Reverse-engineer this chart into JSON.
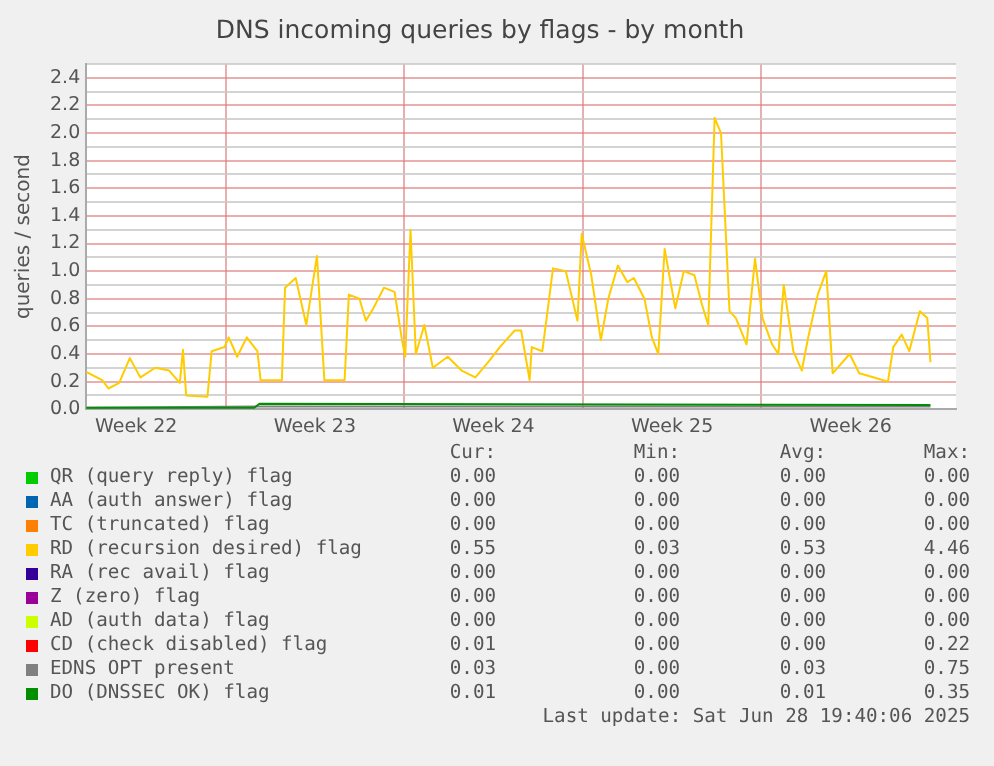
{
  "chart_data": {
    "type": "line",
    "title": "DNS incoming queries by flags - by month",
    "ylabel": "queries / second",
    "xlim": [
      "2025-05-26T13:00",
      "2025-06-29T15:00"
    ],
    "ylim": [
      0,
      2.5
    ],
    "xticks": [
      {
        "value": "2025-05-28T12:00",
        "label": "Week 22"
      },
      {
        "value": "2025-06-01T00:00",
        "label": null
      },
      {
        "value": "2025-06-04T12:00",
        "label": "Week 23"
      },
      {
        "value": "2025-06-08T00:00",
        "label": null
      },
      {
        "value": "2025-06-11T12:00",
        "label": "Week 24"
      },
      {
        "value": "2025-06-15T00:00",
        "label": null
      },
      {
        "value": "2025-06-18T12:00",
        "label": "Week 25"
      },
      {
        "value": "2025-06-22T00:00",
        "label": null
      },
      {
        "value": "2025-06-25T12:00",
        "label": "Week 26"
      }
    ],
    "yticks": [
      {
        "value": 0,
        "label": "0.0"
      },
      {
        "value": 0.1,
        "label": null
      },
      0.2,
      {
        "value": 0.3,
        "label": null
      },
      0.4,
      {
        "value": 0.5,
        "label": null
      },
      0.6,
      {
        "value": 0.7,
        "label": null
      },
      0.8,
      {
        "value": 0.9,
        "label": null
      },
      {
        "value": 1,
        "label": "1.0"
      },
      {
        "value": 1.1,
        "label": null
      },
      1.2,
      {
        "value": 1.3,
        "label": null
      },
      1.4,
      {
        "value": 1.5,
        "label": null
      },
      1.6,
      {
        "value": 1.7,
        "label": null
      },
      1.8,
      {
        "value": 1.9,
        "label": null
      },
      {
        "value": 2,
        "label": "2.0"
      },
      {
        "value": 2.1,
        "label": null
      },
      2.2,
      {
        "value": 2.3,
        "label": null
      },
      2.4,
      {
        "value": 2.5,
        "label": null
      }
    ],
    "grid": true,
    "legend": "bottom",
    "marker": "none",
    "line_style": "solid",
    "series": [
      {
        "name": "QR (query reply) flag",
        "color": "#00cc00"
      },
      {
        "name": "AA (auth answer) flag",
        "color": "#0066b3"
      },
      {
        "name": "TC (truncated) flag",
        "color": "#ff8000"
      },
      {
        "name": "RD (recursion desired) flag",
        "color": "#ffcc00",
        "x": [
          "2025-05-26T13:00",
          "2025-05-27T04:00",
          "2025-05-27T10:00",
          "2025-05-27T20:00",
          "2025-05-28T06:00",
          "2025-05-28T16:00",
          "2025-05-29T06:00",
          "2025-05-29T19:00",
          "2025-05-30T05:00",
          "2025-05-30T08:00",
          "2025-05-30T11:00",
          "2025-05-31T07:00",
          "2025-05-31T11:00",
          "2025-05-31T23:00",
          "2025-06-01T03:00",
          "2025-06-01T11:00",
          "2025-06-01T20:00",
          "2025-06-02T06:00",
          "2025-06-02T09:00",
          "2025-06-03T05:00",
          "2025-06-03T08:00",
          "2025-06-03T18:00",
          "2025-06-04T04:00",
          "2025-06-04T14:00",
          "2025-06-04T21:00",
          "2025-06-05T16:00",
          "2025-06-05T20:00",
          "2025-06-06T06:00",
          "2025-06-06T12:00",
          "2025-06-06T19:00",
          "2025-06-07T05:00",
          "2025-06-07T15:00",
          "2025-06-07T22:00",
          "2025-06-08T01:00",
          "2025-06-08T06:00",
          "2025-06-08T11:00",
          "2025-06-08T19:00",
          "2025-06-09T03:00",
          "2025-06-09T17:00",
          "2025-06-10T06:00",
          "2025-06-10T19:00",
          "2025-06-11T08:00",
          "2025-06-11T18:00",
          "2025-06-12T08:00",
          "2025-06-12T14:00",
          "2025-06-12T22:00",
          "2025-06-13T00:00",
          "2025-06-13T10:00",
          "2025-06-13T20:00",
          "2025-06-14T08:00",
          "2025-06-14T19:00",
          "2025-06-14T23:00",
          "2025-06-15T08:00",
          "2025-06-15T17:00",
          "2025-06-16T00:00",
          "2025-06-16T09:00",
          "2025-06-16T18:00",
          "2025-06-17T00:00",
          "2025-06-17T10:00",
          "2025-06-17T17:00",
          "2025-06-17T23:00",
          "2025-06-18T05:00",
          "2025-06-18T15:00",
          "2025-06-18T23:00",
          "2025-06-19T09:00",
          "2025-06-19T16:00",
          "2025-06-19T22:00",
          "2025-06-20T04:00",
          "2025-06-20T10:00",
          "2025-06-20T18:00",
          "2025-06-21T00:00",
          "2025-06-21T10:00",
          "2025-06-21T18:00",
          "2025-06-22T01:00",
          "2025-06-22T10:00",
          "2025-06-22T16:00",
          "2025-06-22T21:00",
          "2025-06-23T06:00",
          "2025-06-23T14:00",
          "2025-06-23T20:00",
          "2025-06-24T05:00",
          "2025-06-24T13:00",
          "2025-06-24T19:00",
          "2025-06-25T11:00",
          "2025-06-25T20:00",
          "2025-06-26T10:00",
          "2025-06-26T23:00",
          "2025-06-27T04:00",
          "2025-06-27T12:00",
          "2025-06-27T19:00",
          "2025-06-28T05:00",
          "2025-06-28T12:00",
          "2025-06-28T15:00"
        ],
        "values": [
          0.27,
          0.21,
          0.15,
          0.19,
          0.37,
          0.23,
          0.3,
          0.28,
          0.19,
          0.43,
          0.1,
          0.09,
          0.42,
          0.45,
          0.52,
          0.38,
          0.52,
          0.42,
          0.21,
          0.21,
          0.88,
          0.95,
          0.61,
          1.11,
          0.21,
          0.21,
          0.83,
          0.8,
          0.64,
          0.73,
          0.88,
          0.85,
          0.5,
          0.38,
          1.3,
          0.4,
          0.61,
          0.3,
          0.38,
          0.28,
          0.23,
          0.35,
          0.45,
          0.57,
          0.57,
          0.21,
          0.45,
          0.42,
          1.02,
          1,
          0.64,
          1.27,
          0.97,
          0.5,
          0.8,
          1.04,
          0.92,
          0.95,
          0.8,
          0.52,
          0.4,
          1.16,
          0.73,
          1,
          0.97,
          0.76,
          0.61,
          2.11,
          2,
          0.71,
          0.66,
          0.47,
          1.09,
          0.66,
          0.47,
          0.4,
          0.9,
          0.42,
          0.28,
          0.52,
          0.83,
          1,
          0.26,
          0.4,
          0.26,
          0.23,
          0.2,
          0.45,
          0.54,
          0.42,
          0.71,
          0.66,
          0.34
        ]
      },
      {
        "name": "RA (rec avail) flag",
        "color": "#330099"
      },
      {
        "name": "Z (zero) flag",
        "color": "#990099"
      },
      {
        "name": "AD (auth data) flag",
        "color": "#ccff00"
      },
      {
        "name": "CD (check disabled) flag",
        "color": "#ff0000"
      },
      {
        "name": "EDNS OPT present",
        "color": "#808080",
        "x": [
          "2025-05-26T13:00",
          "2025-06-02T06:00",
          "2025-06-28T15:00"
        ],
        "values": [
          0.01,
          0.02,
          0.02
        ]
      },
      {
        "name": "DO (DNSSEC OK) flag",
        "color": "#008f00",
        "x": [
          "2025-05-26T13:00",
          "2025-06-02T03:00",
          "2025-06-02T08:00",
          "2025-06-28T15:00"
        ],
        "values": [
          0.01,
          0.01,
          0.04,
          0.03
        ]
      }
    ],
    "annotations": [
      "Cur:",
      "Min:",
      "Avg:",
      "Max:",
      "0.00",
      "0.00",
      "0.00",
      "0.00",
      "0.00",
      "0.00",
      "0.00",
      "0.00",
      "0.00",
      "0.00",
      "0.00",
      "0.00",
      "0.55",
      "0.03",
      "0.53",
      "4.46",
      "0.00",
      "0.00",
      "0.00",
      "0.00",
      "0.00",
      "0.00",
      "0.00",
      "0.00",
      "0.00",
      "0.00",
      "0.00",
      "0.00",
      "0.01",
      "0.00",
      "0.00",
      "0.22",
      "0.03",
      "0.00",
      "0.03",
      "0.75",
      "0.01",
      "0.00",
      "0.01",
      "0.35",
      "Last update: Sat Jun 28 19:40:06 2025"
    ]
  }
}
